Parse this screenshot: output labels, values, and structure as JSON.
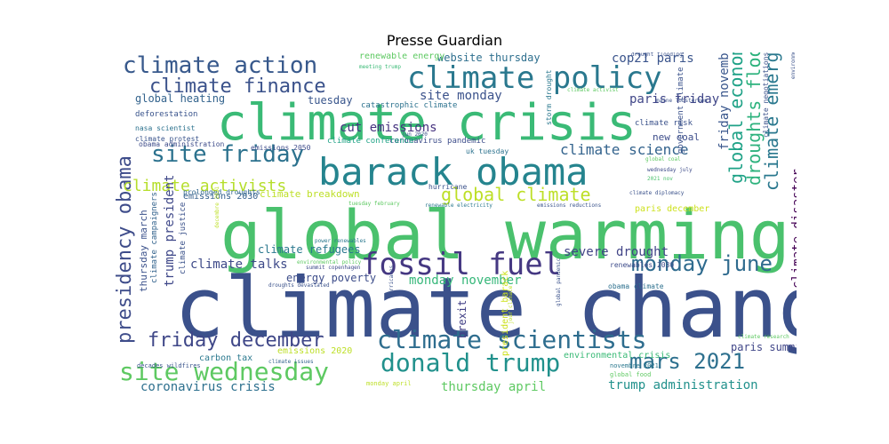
{
  "chart_data": {
    "type": "wordcloud",
    "title": "Presse Guardian",
    "words": [
      {
        "text": "climate change",
        "weight": 1.0
      },
      {
        "text": "global warming",
        "weight": 0.78
      },
      {
        "text": "climate crisis",
        "weight": 0.6
      },
      {
        "text": "barack obama",
        "weight": 0.48
      },
      {
        "text": "fossil fuel",
        "weight": 0.33
      },
      {
        "text": "climate policy",
        "weight": 0.32
      },
      {
        "text": "climate scientists",
        "weight": 0.32
      },
      {
        "text": "donald trump",
        "weight": 0.3
      },
      {
        "text": "site wednesday",
        "weight": 0.3
      },
      {
        "text": "climate action",
        "weight": 0.3
      },
      {
        "text": "presidency obama",
        "weight": 0.28
      },
      {
        "text": "site friday",
        "weight": 0.27
      },
      {
        "text": "friday december",
        "weight": 0.25
      },
      {
        "text": "mars 2021",
        "weight": 0.25
      },
      {
        "text": "monday june",
        "weight": 0.25
      },
      {
        "text": "climate finance",
        "weight": 0.24
      },
      {
        "text": "global economy",
        "weight": 0.23
      },
      {
        "text": "droughts floods",
        "weight": 0.22
      },
      {
        "text": "global climate",
        "weight": 0.21
      },
      {
        "text": "climate emergency",
        "weight": 0.2
      },
      {
        "text": "climate activists",
        "weight": 0.17
      },
      {
        "text": "climate science",
        "weight": 0.15
      },
      {
        "text": "cop21 paris",
        "weight": 0.13
      },
      {
        "text": "cut emissions",
        "weight": 0.12
      },
      {
        "text": "severe drought",
        "weight": 0.12
      },
      {
        "text": "coronavirus crisis",
        "weight": 0.12
      },
      {
        "text": "trump administration",
        "weight": 0.12
      },
      {
        "text": "thursday april",
        "weight": 0.12
      },
      {
        "text": "climate talks",
        "weight": 0.11
      },
      {
        "text": "monday november",
        "weight": 0.11
      },
      {
        "text": "climate disaster",
        "weight": 0.11
      },
      {
        "text": "trump president",
        "weight": 0.11
      },
      {
        "text": "friday november",
        "weight": 0.11
      },
      {
        "text": "paris friday",
        "weight": 0.11
      },
      {
        "text": "site monday",
        "weight": 0.11
      },
      {
        "text": "website thursday",
        "weight": 0.1
      },
      {
        "text": "climate refugees",
        "weight": 0.1
      },
      {
        "text": "paris summit",
        "weight": 0.1
      },
      {
        "text": "energy poverty",
        "weight": 0.1
      },
      {
        "text": "brexit",
        "weight": 0.09
      },
      {
        "text": "global heating",
        "weight": 0.09
      },
      {
        "text": "tuesday",
        "weight": 0.09
      },
      {
        "text": "new coal",
        "weight": 0.08
      },
      {
        "text": "climate breakdown",
        "weight": 0.08
      },
      {
        "text": "thursday march",
        "weight": 0.08
      },
      {
        "text": "emissions 2030",
        "weight": 0.08
      },
      {
        "text": "paris december",
        "weight": 0.08
      },
      {
        "text": "president barack",
        "weight": 0.08
      },
      {
        "text": "carbon tax",
        "weight": 0.08
      },
      {
        "text": "environmental crisis",
        "weight": 0.08
      },
      {
        "text": "emissions 2020",
        "weight": 0.08
      },
      {
        "text": "renewable energy",
        "weight": 0.08
      },
      {
        "text": "climate justice",
        "weight": 0.07
      },
      {
        "text": "climate campaigners",
        "weight": 0.07
      },
      {
        "text": "catastrophic climate",
        "weight": 0.07
      },
      {
        "text": "coronavirus pandemic",
        "weight": 0.07
      },
      {
        "text": "climate conference",
        "weight": 0.07
      },
      {
        "text": "deforestation",
        "weight": 0.07
      },
      {
        "text": "government climate",
        "weight": 0.07
      },
      {
        "text": "climate risk",
        "weight": 0.07
      },
      {
        "text": "storm drought",
        "weight": 0.06
      },
      {
        "text": "nasa scientist",
        "weight": 0.06
      },
      {
        "text": "climate protest",
        "weight": 0.06
      },
      {
        "text": "obama administration",
        "weight": 0.06
      },
      {
        "text": "climate negotiations",
        "weight": 0.06
      },
      {
        "text": "hurricane",
        "weight": 0.06
      },
      {
        "text": "prolonged droughts",
        "weight": 0.06
      },
      {
        "text": "renewables 2030",
        "weight": 0.06
      },
      {
        "text": "obama climate",
        "weight": 0.06
      },
      {
        "text": "uk tuesday",
        "weight": 0.06
      },
      {
        "text": "emissions 2050",
        "weight": 0.05
      },
      {
        "text": "decades wildfires",
        "weight": 0.05
      },
      {
        "text": "monday april",
        "weight": 0.05
      },
      {
        "text": "novembre 2021",
        "weight": 0.05
      },
      {
        "text": "global food",
        "weight": 0.05
      },
      {
        "text": "climate research",
        "weight": 0.04
      },
      {
        "text": "meeting trump",
        "weight": 0.04
      },
      {
        "text": "drought flooding",
        "weight": 0.04
      },
      {
        "text": "climate activist",
        "weight": 0.04
      },
      {
        "text": "maine lobstermen",
        "weight": 0.04
      },
      {
        "text": "environmental laws",
        "weight": 0.04
      },
      {
        "text": "jun 2020",
        "weight": 0.04
      },
      {
        "text": "global coal",
        "weight": 0.04
      },
      {
        "text": "wednesday july",
        "weight": 0.04
      },
      {
        "text": "2021 nov",
        "weight": 0.04
      },
      {
        "text": "climate diplomacy",
        "weight": 0.04
      },
      {
        "text": "renewable electricity",
        "weight": 0.04
      },
      {
        "text": "emissions reductions",
        "weight": 0.04
      },
      {
        "text": "tuesday february",
        "weight": 0.04
      },
      {
        "text": "decembre 2021",
        "weight": 0.04
      },
      {
        "text": "power renewables",
        "weight": 0.04
      },
      {
        "text": "environmental policy",
        "weight": 0.04
      },
      {
        "text": "summit copenhagen",
        "weight": 0.04
      },
      {
        "text": "droughts devastated",
        "weight": 0.04
      },
      {
        "text": "hurricanes",
        "weight": 0.04
      },
      {
        "text": "global pandemic",
        "weight": 0.04
      },
      {
        "text": "climate issues",
        "weight": 0.04
      },
      {
        "text": "jour climate",
        "weight": 0.04
      }
    ]
  }
}
